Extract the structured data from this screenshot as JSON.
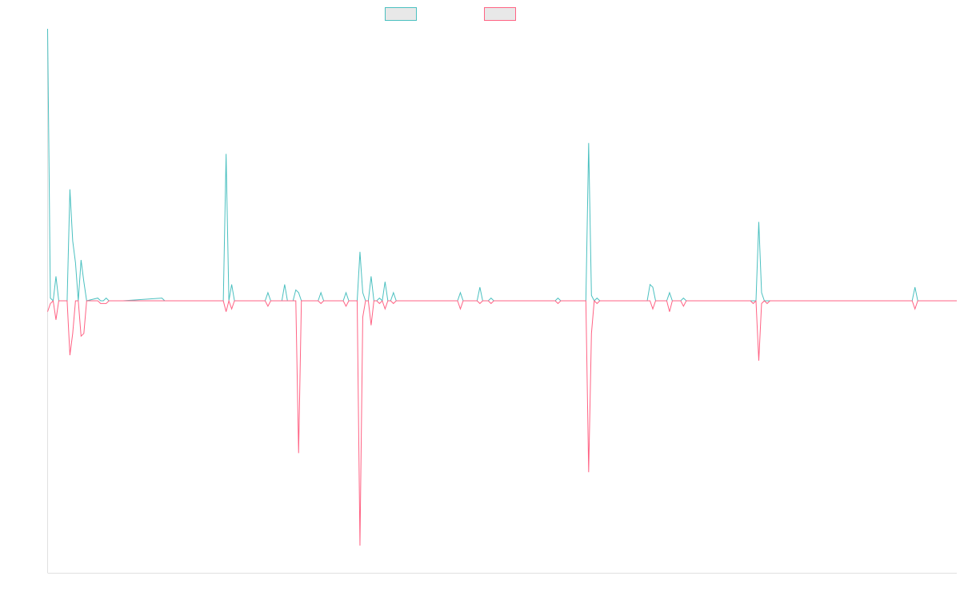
{
  "chart_data": {
    "type": "line",
    "legend": {
      "placement": "top-center"
    },
    "grid": false,
    "ylim": [
      -1.0,
      1.0
    ],
    "xlim": [
      0,
      326
    ],
    "series": [
      {
        "name": "",
        "color": "#4bc0c0",
        "fill": "#e8e8e8",
        "values": [
          {
            "x": 0,
            "y": 1.0
          },
          {
            "x": 1,
            "y": 0.01
          },
          {
            "x": 2,
            "y": 0.0
          },
          {
            "x": 3,
            "y": 0.09
          },
          {
            "x": 4,
            "y": 0.0
          },
          {
            "x": 5,
            "y": 0.0
          },
          {
            "x": 6,
            "y": 0.0
          },
          {
            "x": 7,
            "y": 0.0
          },
          {
            "x": 8,
            "y": 0.41
          },
          {
            "x": 9,
            "y": 0.22
          },
          {
            "x": 10,
            "y": 0.14
          },
          {
            "x": 11,
            "y": 0.0
          },
          {
            "x": 12,
            "y": 0.15
          },
          {
            "x": 13,
            "y": 0.07
          },
          {
            "x": 14,
            "y": 0.0
          },
          {
            "x": 18,
            "y": 0.01
          },
          {
            "x": 19,
            "y": 0.0
          },
          {
            "x": 20,
            "y": 0.0
          },
          {
            "x": 21,
            "y": 0.01
          },
          {
            "x": 22,
            "y": 0.0
          },
          {
            "x": 26,
            "y": 0.0
          },
          {
            "x": 27,
            "y": 0.0
          },
          {
            "x": 41,
            "y": 0.01
          },
          {
            "x": 42,
            "y": 0.0
          },
          {
            "x": 63,
            "y": 0.0
          },
          {
            "x": 64,
            "y": 0.54
          },
          {
            "x": 65,
            "y": 0.0
          },
          {
            "x": 66,
            "y": 0.06
          },
          {
            "x": 67,
            "y": 0.0
          },
          {
            "x": 78,
            "y": 0.0
          },
          {
            "x": 79,
            "y": 0.03
          },
          {
            "x": 80,
            "y": 0.0
          },
          {
            "x": 84,
            "y": 0.0
          },
          {
            "x": 85,
            "y": 0.06
          },
          {
            "x": 86,
            "y": 0.0
          },
          {
            "x": 88,
            "y": 0.0
          },
          {
            "x": 89,
            "y": 0.04
          },
          {
            "x": 90,
            "y": 0.03
          },
          {
            "x": 91,
            "y": 0.0
          },
          {
            "x": 97,
            "y": 0.0
          },
          {
            "x": 98,
            "y": 0.03
          },
          {
            "x": 99,
            "y": 0.0
          },
          {
            "x": 106,
            "y": 0.0
          },
          {
            "x": 107,
            "y": 0.03
          },
          {
            "x": 108,
            "y": 0.0
          },
          {
            "x": 110,
            "y": 0.0
          },
          {
            "x": 111,
            "y": 0.0
          },
          {
            "x": 112,
            "y": 0.18
          },
          {
            "x": 113,
            "y": 0.03
          },
          {
            "x": 114,
            "y": 0.0
          },
          {
            "x": 115,
            "y": 0.0
          },
          {
            "x": 116,
            "y": 0.09
          },
          {
            "x": 117,
            "y": 0.0
          },
          {
            "x": 118,
            "y": 0.0
          },
          {
            "x": 119,
            "y": 0.01
          },
          {
            "x": 120,
            "y": 0.0
          },
          {
            "x": 121,
            "y": 0.07
          },
          {
            "x": 122,
            "y": 0.0
          },
          {
            "x": 123,
            "y": 0.0
          },
          {
            "x": 124,
            "y": 0.03
          },
          {
            "x": 125,
            "y": 0.0
          },
          {
            "x": 147,
            "y": 0.0
          },
          {
            "x": 148,
            "y": 0.03
          },
          {
            "x": 149,
            "y": 0.0
          },
          {
            "x": 154,
            "y": 0.0
          },
          {
            "x": 155,
            "y": 0.05
          },
          {
            "x": 156,
            "y": 0.0
          },
          {
            "x": 158,
            "y": 0.0
          },
          {
            "x": 159,
            "y": 0.01
          },
          {
            "x": 160,
            "y": 0.0
          },
          {
            "x": 182,
            "y": 0.0
          },
          {
            "x": 183,
            "y": 0.01
          },
          {
            "x": 184,
            "y": 0.0
          },
          {
            "x": 193,
            "y": 0.0
          },
          {
            "x": 194,
            "y": 0.58
          },
          {
            "x": 195,
            "y": 0.02
          },
          {
            "x": 196,
            "y": 0.0
          },
          {
            "x": 197,
            "y": 0.01
          },
          {
            "x": 198,
            "y": 0.0
          },
          {
            "x": 214,
            "y": 0.0
          },
          {
            "x": 215,
            "y": 0.0
          },
          {
            "x": 216,
            "y": 0.06
          },
          {
            "x": 217,
            "y": 0.05
          },
          {
            "x": 218,
            "y": 0.0
          },
          {
            "x": 222,
            "y": 0.0
          },
          {
            "x": 223,
            "y": 0.03
          },
          {
            "x": 224,
            "y": 0.0
          },
          {
            "x": 227,
            "y": 0.0
          },
          {
            "x": 228,
            "y": 0.01
          },
          {
            "x": 229,
            "y": 0.0
          },
          {
            "x": 252,
            "y": 0.0
          },
          {
            "x": 253,
            "y": 0.0
          },
          {
            "x": 254,
            "y": 0.0
          },
          {
            "x": 255,
            "y": 0.29
          },
          {
            "x": 256,
            "y": 0.03
          },
          {
            "x": 257,
            "y": 0.0
          },
          {
            "x": 258,
            "y": 0.0
          },
          {
            "x": 259,
            "y": 0.0
          },
          {
            "x": 260,
            "y": 0.0
          },
          {
            "x": 310,
            "y": 0.0
          },
          {
            "x": 311,
            "y": 0.05
          },
          {
            "x": 312,
            "y": 0.0
          },
          {
            "x": 326,
            "y": 0.0
          }
        ]
      },
      {
        "name": "",
        "color": "#ff6384",
        "fill": "#e8e8e8",
        "values": [
          {
            "x": 0,
            "y": -0.04
          },
          {
            "x": 1,
            "y": -0.01
          },
          {
            "x": 2,
            "y": 0.0
          },
          {
            "x": 3,
            "y": -0.07
          },
          {
            "x": 4,
            "y": 0.0
          },
          {
            "x": 5,
            "y": 0.0
          },
          {
            "x": 6,
            "y": 0.0
          },
          {
            "x": 7,
            "y": 0.0
          },
          {
            "x": 8,
            "y": -0.2
          },
          {
            "x": 9,
            "y": -0.12
          },
          {
            "x": 10,
            "y": 0.0
          },
          {
            "x": 11,
            "y": 0.0
          },
          {
            "x": 12,
            "y": -0.13
          },
          {
            "x": 13,
            "y": -0.12
          },
          {
            "x": 14,
            "y": 0.0
          },
          {
            "x": 18,
            "y": 0.0
          },
          {
            "x": 19,
            "y": -0.01
          },
          {
            "x": 20,
            "y": -0.01
          },
          {
            "x": 21,
            "y": -0.01
          },
          {
            "x": 22,
            "y": 0.0
          },
          {
            "x": 26,
            "y": 0.0
          },
          {
            "x": 27,
            "y": 0.0
          },
          {
            "x": 41,
            "y": 0.0
          },
          {
            "x": 42,
            "y": 0.0
          },
          {
            "x": 63,
            "y": 0.0
          },
          {
            "x": 64,
            "y": -0.04
          },
          {
            "x": 65,
            "y": 0.0
          },
          {
            "x": 66,
            "y": -0.03
          },
          {
            "x": 67,
            "y": 0.0
          },
          {
            "x": 78,
            "y": 0.0
          },
          {
            "x": 79,
            "y": -0.02
          },
          {
            "x": 80,
            "y": 0.0
          },
          {
            "x": 84,
            "y": 0.0
          },
          {
            "x": 85,
            "y": 0.0
          },
          {
            "x": 86,
            "y": 0.0
          },
          {
            "x": 88,
            "y": 0.0
          },
          {
            "x": 89,
            "y": 0.0
          },
          {
            "x": 90,
            "y": -0.56
          },
          {
            "x": 91,
            "y": 0.0
          },
          {
            "x": 97,
            "y": 0.0
          },
          {
            "x": 98,
            "y": -0.01
          },
          {
            "x": 99,
            "y": 0.0
          },
          {
            "x": 106,
            "y": 0.0
          },
          {
            "x": 107,
            "y": -0.02
          },
          {
            "x": 108,
            "y": 0.0
          },
          {
            "x": 110,
            "y": 0.0
          },
          {
            "x": 111,
            "y": 0.0
          },
          {
            "x": 112,
            "y": -0.9
          },
          {
            "x": 113,
            "y": -0.06
          },
          {
            "x": 114,
            "y": 0.0
          },
          {
            "x": 115,
            "y": 0.0
          },
          {
            "x": 116,
            "y": -0.09
          },
          {
            "x": 117,
            "y": 0.0
          },
          {
            "x": 118,
            "y": 0.0
          },
          {
            "x": 119,
            "y": -0.01
          },
          {
            "x": 120,
            "y": 0.0
          },
          {
            "x": 121,
            "y": -0.03
          },
          {
            "x": 122,
            "y": 0.0
          },
          {
            "x": 123,
            "y": 0.0
          },
          {
            "x": 124,
            "y": -0.01
          },
          {
            "x": 125,
            "y": 0.0
          },
          {
            "x": 147,
            "y": 0.0
          },
          {
            "x": 148,
            "y": -0.03
          },
          {
            "x": 149,
            "y": 0.0
          },
          {
            "x": 154,
            "y": 0.0
          },
          {
            "x": 155,
            "y": -0.01
          },
          {
            "x": 156,
            "y": 0.0
          },
          {
            "x": 158,
            "y": 0.0
          },
          {
            "x": 159,
            "y": -0.01
          },
          {
            "x": 160,
            "y": 0.0
          },
          {
            "x": 182,
            "y": 0.0
          },
          {
            "x": 183,
            "y": -0.01
          },
          {
            "x": 184,
            "y": 0.0
          },
          {
            "x": 193,
            "y": 0.0
          },
          {
            "x": 194,
            "y": -0.63
          },
          {
            "x": 195,
            "y": -0.12
          },
          {
            "x": 196,
            "y": 0.0
          },
          {
            "x": 197,
            "y": -0.01
          },
          {
            "x": 198,
            "y": 0.0
          },
          {
            "x": 214,
            "y": 0.0
          },
          {
            "x": 215,
            "y": 0.0
          },
          {
            "x": 216,
            "y": 0.0
          },
          {
            "x": 217,
            "y": -0.03
          },
          {
            "x": 218,
            "y": 0.0
          },
          {
            "x": 222,
            "y": 0.0
          },
          {
            "x": 223,
            "y": -0.04
          },
          {
            "x": 224,
            "y": 0.0
          },
          {
            "x": 227,
            "y": 0.0
          },
          {
            "x": 228,
            "y": -0.02
          },
          {
            "x": 229,
            "y": 0.0
          },
          {
            "x": 252,
            "y": 0.0
          },
          {
            "x": 253,
            "y": -0.01
          },
          {
            "x": 254,
            "y": 0.0
          },
          {
            "x": 255,
            "y": -0.22
          },
          {
            "x": 256,
            "y": -0.01
          },
          {
            "x": 257,
            "y": 0.0
          },
          {
            "x": 258,
            "y": -0.01
          },
          {
            "x": 259,
            "y": 0.0
          },
          {
            "x": 260,
            "y": 0.0
          },
          {
            "x": 310,
            "y": 0.0
          },
          {
            "x": 311,
            "y": -0.03
          },
          {
            "x": 312,
            "y": 0.0
          },
          {
            "x": 326,
            "y": 0.0
          }
        ]
      }
    ]
  }
}
